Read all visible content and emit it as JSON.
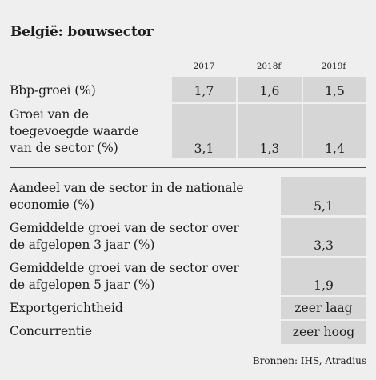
{
  "title": "België: bouwsector",
  "years": [
    "2017",
    "2018f",
    "2019f"
  ],
  "table1": [
    {
      "label_lines": [
        "Bbp-groei (%)"
      ],
      "values": [
        "1,7",
        "1,6",
        "1,5"
      ]
    },
    {
      "label_lines": [
        "Groei van de",
        "toegevoegde waarde",
        "van de sector (%)"
      ],
      "values": [
        "3,1",
        "1,3",
        "1,4"
      ]
    }
  ],
  "table2": [
    {
      "label_lines": [
        "Aandeel van de sector in de nationale",
        "economie (%)"
      ],
      "value": "5,1"
    },
    {
      "label_lines": [
        "Gemiddelde groei van de sector over",
        "de afgelopen 3 jaar (%)"
      ],
      "value": "3,3"
    },
    {
      "label_lines": [
        "Gemiddelde groei van de sector over",
        "de afgelopen 5 jaar (%)"
      ],
      "value": "1,9"
    },
    {
      "label_lines": [
        "Exportgerichtheid"
      ],
      "value": "zeer laag"
    },
    {
      "label_lines": [
        "Concurrentie"
      ],
      "value": "zeer hoog"
    }
  ],
  "source": "Bronnen: IHS, Atradius"
}
